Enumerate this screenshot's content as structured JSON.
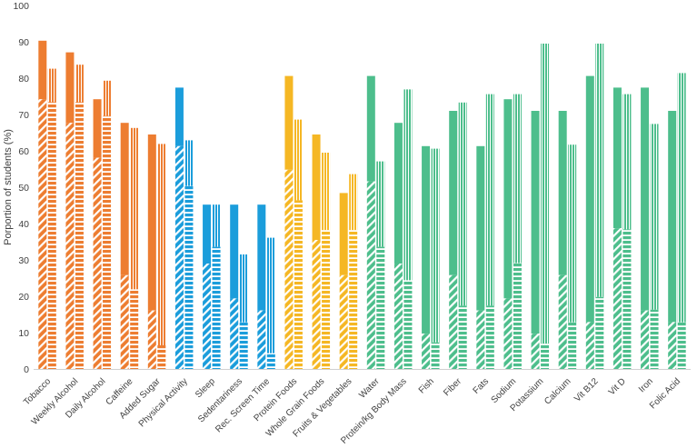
{
  "chart_data": {
    "type": "bar",
    "ylabel": "Porportion of students (%)",
    "ylim": [
      0,
      100
    ],
    "yticks": [
      0,
      10,
      20,
      30,
      40,
      50,
      60,
      70,
      80,
      90,
      100
    ],
    "grid": false,
    "legend": "none",
    "notes": "Each category has two bars. A bar's full height is its total value; the lower segment drawn with a diagonal/horizontal stripe pattern shows a sub-portion, and the upper segment is solid or vertically striped.",
    "categories": [
      "Tobacco",
      "Weekly Alcohol",
      "Daily Alcohol",
      "Caffeine",
      "Added Sugar",
      "Physical Activity",
      "Sleep",
      "Sedentariness",
      "Rec. Screen Time",
      "Protein Foods",
      "Whole Grain Foods",
      "Fruits & Vegetables",
      "Water",
      "Protein/kg Body Mass",
      "Fish",
      "Fiber",
      "Fats",
      "Sodium",
      "Potassium",
      "Calcium",
      "Vit B12",
      "Vit D",
      "Iron",
      "Folic Acid"
    ],
    "group_colors": [
      "#ED7D31",
      "#ED7D31",
      "#ED7D31",
      "#ED7D31",
      "#ED7D31",
      "#1B9DDB",
      "#1B9DDB",
      "#1B9DDB",
      "#1B9DDB",
      "#F5B724",
      "#F5B724",
      "#F5B724",
      "#4DBE8C",
      "#4DBE8C",
      "#4DBE8C",
      "#4DBE8C",
      "#4DBE8C",
      "#4DBE8C",
      "#4DBE8C",
      "#4DBE8C",
      "#4DBE8C",
      "#4DBE8C",
      "#4DBE8C",
      "#4DBE8C"
    ],
    "series": [
      {
        "total": [
          90.3,
          87.1,
          74.2,
          67.7,
          64.5,
          77.4,
          45.2,
          45.2,
          45.2,
          80.6,
          64.5,
          48.4,
          80.6,
          67.7,
          61.3,
          71.0,
          61.3,
          74.2,
          71.0,
          71.0,
          80.6,
          77.4,
          77.4,
          71.0
        ],
        "striped": [
          74.2,
          67.7,
          58.1,
          25.8,
          16.1,
          61.3,
          29.0,
          19.4,
          16.1,
          54.8,
          35.5,
          25.8,
          51.6,
          29.0,
          9.7,
          25.8,
          16.1,
          19.4,
          9.7,
          25.8,
          12.9,
          38.7,
          16.1,
          12.9
        ]
      },
      {
        "total": [
          82.6,
          83.7,
          79.3,
          66.3,
          61.9,
          62.9,
          45.2,
          31.5,
          36.1,
          68.6,
          59.5,
          53.6,
          57.1,
          76.9,
          60.6,
          73.3,
          75.6,
          75.6,
          89.5,
          61.7,
          89.5,
          75.6,
          67.4,
          81.4
        ],
        "striped": [
          73.4,
          73.4,
          69.6,
          21.9,
          6.5,
          50.3,
          33.6,
          12.8,
          4.3,
          46.4,
          38.2,
          38.2,
          33.6,
          24.4,
          7.3,
          17.4,
          17.4,
          29.1,
          7.0,
          12.8,
          19.8,
          38.4,
          16.3,
          12.8
        ]
      }
    ]
  }
}
